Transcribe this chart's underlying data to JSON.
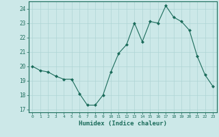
{
  "x": [
    0,
    1,
    2,
    3,
    4,
    5,
    6,
    7,
    8,
    9,
    10,
    11,
    12,
    13,
    14,
    15,
    16,
    17,
    18,
    19,
    20,
    21,
    22,
    23
  ],
  "y": [
    20.0,
    19.7,
    19.6,
    19.3,
    19.1,
    19.1,
    18.1,
    17.3,
    17.3,
    18.0,
    19.6,
    20.9,
    21.5,
    23.0,
    21.7,
    23.1,
    23.0,
    24.2,
    23.4,
    23.1,
    22.5,
    20.7,
    19.4,
    18.6
  ],
  "xlim": [
    -0.5,
    23.5
  ],
  "ylim": [
    16.8,
    24.5
  ],
  "yticks": [
    17,
    18,
    19,
    20,
    21,
    22,
    23,
    24
  ],
  "xticks": [
    0,
    1,
    2,
    3,
    4,
    5,
    6,
    7,
    8,
    9,
    10,
    11,
    12,
    13,
    14,
    15,
    16,
    17,
    18,
    19,
    20,
    21,
    22,
    23
  ],
  "xlabel": "Humidex (Indice chaleur)",
  "line_color": "#1a6b5a",
  "marker": "D",
  "marker_size": 2,
  "bg_color": "#cce8e8",
  "grid_color": "#aed4d4",
  "tick_color": "#1a6b5a",
  "label_color": "#1a6b5a",
  "spine_color": "#1a6b5a"
}
